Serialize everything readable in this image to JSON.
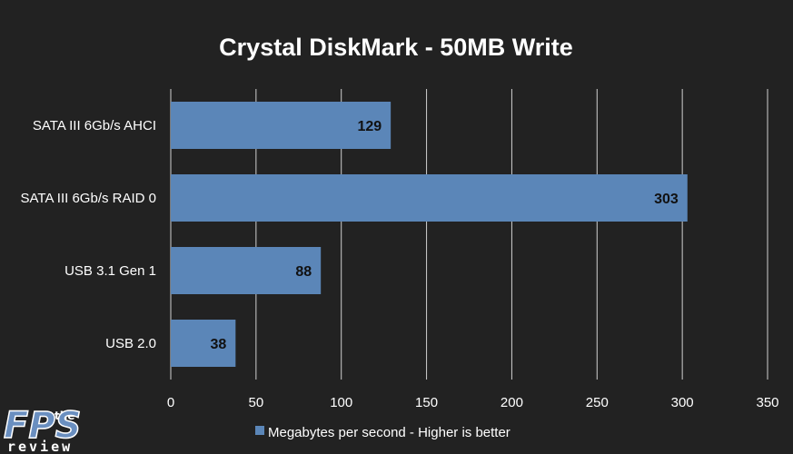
{
  "colors": {
    "background": "#222222",
    "bar": "#5b86b8",
    "grid": "#d0d0d0",
    "text": "#ffffff",
    "data_label": "#111111"
  },
  "chart_data": {
    "type": "bar",
    "orientation": "horizontal",
    "title": "Crystal DiskMark - 50MB Write",
    "categories": [
      "SATA III 6Gb/s AHCI",
      "SATA III 6Gb/s RAID 0",
      "USB 3.1 Gen 1",
      "USB 2.0"
    ],
    "series": [
      {
        "name": "Megabytes per second - Higher is better",
        "values": [
          129,
          303,
          88,
          38
        ]
      }
    ],
    "xlim": [
      0,
      350
    ],
    "xticks": [
      0,
      50,
      100,
      150,
      200,
      250,
      300,
      350
    ],
    "grid": true,
    "legend_position": "bottom",
    "data_labels": true
  },
  "logo": {
    "top": "the",
    "middle": "FPS",
    "bottom": "review"
  }
}
